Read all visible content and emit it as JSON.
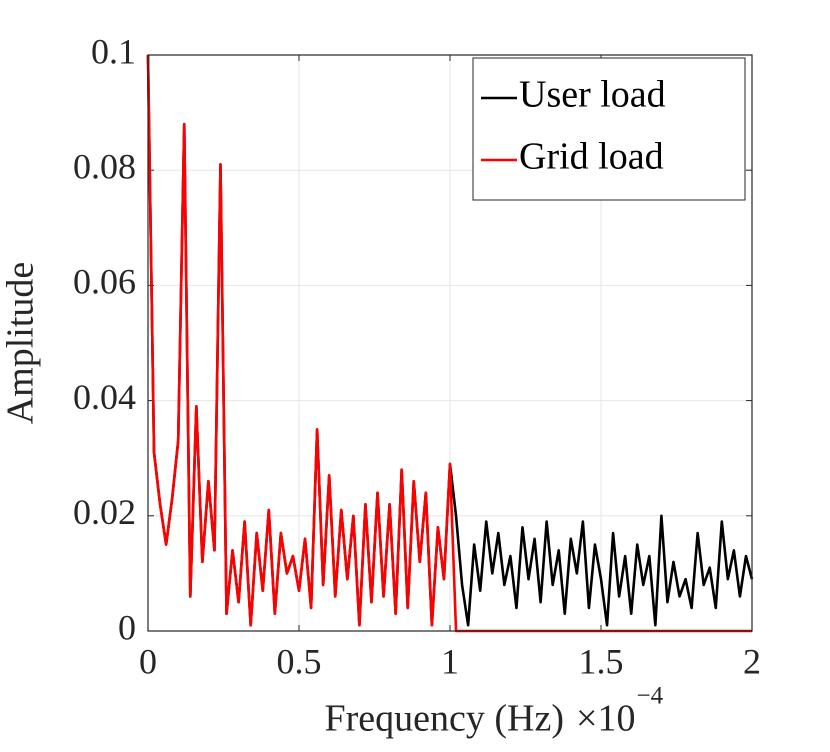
{
  "chart_data": {
    "type": "line",
    "xlabel": "Frequency (Hz)",
    "x_multiplier": {
      "base": "×10",
      "exponent": "−4"
    },
    "ylabel": "Amplitude",
    "xlim": [
      0,
      2
    ],
    "xticks": [
      0,
      0.5,
      1,
      1.5,
      2
    ],
    "ylim": [
      0,
      0.1
    ],
    "yticks": [
      0,
      0.02,
      0.04,
      0.06,
      0.08,
      0.1
    ],
    "grid": true,
    "legend": "upper right",
    "x": [
      0,
      0.02,
      0.04,
      0.06,
      0.08,
      0.1,
      0.12,
      0.14,
      0.16,
      0.18,
      0.2,
      0.22,
      0.24,
      0.26,
      0.28,
      0.3,
      0.32,
      0.34,
      0.36,
      0.38,
      0.4,
      0.42,
      0.44,
      0.46,
      0.48,
      0.5,
      0.52,
      0.54,
      0.56,
      0.58,
      0.6,
      0.62,
      0.64,
      0.66,
      0.68,
      0.7,
      0.72,
      0.74,
      0.76,
      0.78,
      0.8,
      0.82,
      0.84,
      0.86,
      0.88,
      0.9,
      0.92,
      0.94,
      0.96,
      0.98,
      1,
      1.02,
      1.04,
      1.06,
      1.08,
      1.1,
      1.12,
      1.14,
      1.16,
      1.18,
      1.2,
      1.22,
      1.24,
      1.26,
      1.28,
      1.3,
      1.32,
      1.34,
      1.36,
      1.38,
      1.4,
      1.42,
      1.44,
      1.46,
      1.48,
      1.5,
      1.52,
      1.54,
      1.56,
      1.58,
      1.6,
      1.62,
      1.64,
      1.66,
      1.68,
      1.7,
      1.72,
      1.74,
      1.76,
      1.78,
      1.8,
      1.82,
      1.84,
      1.86,
      1.88,
      1.9,
      1.92,
      1.94,
      1.96,
      1.98,
      2
    ],
    "series": [
      {
        "name": "User load",
        "color": "#000000",
        "values": [
          0.1,
          0.031,
          0.022,
          0.015,
          0.023,
          0.033,
          0.088,
          0.006,
          0.039,
          0.012,
          0.026,
          0.014,
          0.081,
          0.003,
          0.014,
          0.005,
          0.019,
          0.001,
          0.017,
          0.007,
          0.021,
          0.003,
          0.017,
          0.01,
          0.013,
          0.007,
          0.016,
          0.004,
          0.035,
          0.008,
          0.027,
          0.006,
          0.021,
          0.009,
          0.02,
          0.001,
          0.022,
          0.005,
          0.024,
          0.006,
          0.022,
          0.003,
          0.028,
          0.004,
          0.026,
          0.012,
          0.024,
          0.001,
          0.018,
          0.009,
          0.029,
          0.02,
          0.008,
          0.001,
          0.015,
          0.007,
          0.019,
          0.01,
          0.017,
          0.008,
          0.013,
          0.004,
          0.018,
          0.009,
          0.016,
          0.005,
          0.019,
          0.008,
          0.014,
          0.003,
          0.016,
          0.01,
          0.019,
          0.004,
          0.015,
          0.009,
          0.001,
          0.017,
          0.006,
          0.013,
          0.003,
          0.015,
          0.008,
          0.013,
          0.001,
          0.02,
          0.005,
          0.012,
          0.006,
          0.009,
          0.004,
          0.017,
          0.008,
          0.011,
          0.004,
          0.019,
          0.009,
          0.014,
          0.006,
          0.013,
          0.009
        ]
      },
      {
        "name": "Grid load",
        "color": "#ff0000",
        "values": [
          0.1,
          0.031,
          0.022,
          0.015,
          0.023,
          0.033,
          0.088,
          0.006,
          0.039,
          0.012,
          0.026,
          0.014,
          0.081,
          0.003,
          0.014,
          0.005,
          0.019,
          0.001,
          0.017,
          0.007,
          0.021,
          0.003,
          0.017,
          0.01,
          0.013,
          0.007,
          0.016,
          0.004,
          0.035,
          0.008,
          0.027,
          0.006,
          0.021,
          0.009,
          0.02,
          0.001,
          0.022,
          0.005,
          0.024,
          0.006,
          0.022,
          0.003,
          0.028,
          0.004,
          0.026,
          0.012,
          0.024,
          0.001,
          0.018,
          0.009,
          0.029,
          0,
          0,
          0,
          0,
          0,
          0,
          0,
          0,
          0,
          0,
          0,
          0,
          0,
          0,
          0,
          0,
          0,
          0,
          0,
          0,
          0,
          0,
          0,
          0,
          0,
          0,
          0,
          0,
          0,
          0,
          0,
          0,
          0,
          0,
          0,
          0,
          0,
          0,
          0,
          0,
          0,
          0,
          0,
          0,
          0,
          0,
          0,
          0,
          0,
          0
        ]
      }
    ]
  }
}
